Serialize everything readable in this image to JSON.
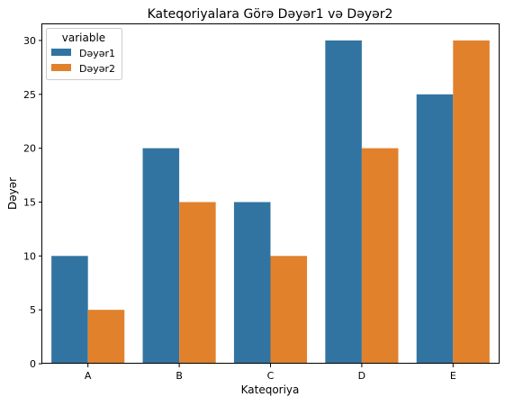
{
  "chart_data": {
    "type": "bar",
    "title": "Kateqoriyalara Görə Dəyər1 və Dəyər2",
    "xlabel": "Kateqoriya",
    "ylabel": "Dəyər",
    "categories": [
      "A",
      "B",
      "C",
      "D",
      "E"
    ],
    "series": [
      {
        "name": "Dəyər1",
        "values": [
          10,
          20,
          15,
          30,
          25
        ],
        "color": "#3274a1"
      },
      {
        "name": "Dəyər2",
        "values": [
          5,
          15,
          10,
          20,
          30
        ],
        "color": "#e1812c"
      }
    ],
    "ylim": [
      0,
      31.5
    ],
    "yticks": [
      0,
      5,
      10,
      15,
      20,
      25,
      30
    ],
    "grid": false,
    "legend": {
      "title": "variable",
      "placement": "top-left"
    }
  }
}
